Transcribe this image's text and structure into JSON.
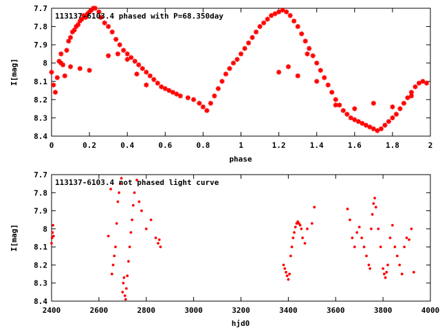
{
  "chart_data": [
    {
      "type": "scatter",
      "title": "113137-6103.4 phased with P=68.350day",
      "xlabel": "phase",
      "ylabel": "I[mag]",
      "xlim": [
        0,
        2
      ],
      "ylim": [
        7.7,
        8.4
      ],
      "y_inverted": true,
      "grid": false,
      "marker": "star",
      "color": "#ff0000",
      "x_ticks": [
        "0",
        "0.2",
        "0.4",
        "0.6",
        "0.8",
        "1",
        "1.2",
        "1.4",
        "1.6",
        "1.8",
        "2"
      ],
      "y_ticks": [
        "7.7",
        "7.8",
        "7.9",
        "8",
        "8.1",
        "8.2",
        "8.3",
        "8.4"
      ],
      "series": [
        {
          "x": [
            0.0,
            0.01,
            0.02,
            0.03,
            0.04,
            0.05,
            0.06,
            0.07,
            0.08,
            0.09,
            0.1,
            0.11,
            0.12,
            0.13,
            0.14,
            0.15,
            0.16,
            0.17,
            0.18,
            0.19,
            0.2,
            0.21,
            0.22,
            0.23,
            0.25,
            0.26,
            0.28,
            0.3,
            0.32,
            0.34,
            0.36,
            0.38,
            0.4,
            0.42,
            0.44,
            0.46,
            0.48,
            0.5,
            0.52,
            0.54,
            0.56,
            0.58,
            0.6,
            0.62,
            0.64,
            0.66,
            0.68,
            0.72,
            0.75,
            0.78,
            0.8,
            0.82,
            0.84,
            0.86,
            0.88,
            0.9,
            0.92,
            0.94,
            0.96,
            0.98,
            1.0,
            1.02,
            1.04,
            1.06,
            1.08,
            1.1,
            1.12,
            1.14,
            1.16,
            1.18,
            1.2,
            1.22,
            1.24,
            1.26,
            1.28,
            1.3,
            1.32,
            1.34,
            1.36,
            1.38,
            1.4,
            1.42,
            1.44,
            1.46,
            1.48,
            1.5,
            1.52,
            1.54,
            1.56,
            1.58,
            1.6,
            1.62,
            1.64,
            1.66,
            1.68,
            1.7,
            1.72,
            1.74,
            1.76,
            1.78,
            1.8,
            1.82,
            1.84,
            1.86,
            1.88,
            1.9,
            1.92,
            1.94,
            1.96,
            1.98,
            0.05,
            0.1,
            0.15,
            0.2,
            0.3,
            0.35,
            0.4,
            0.45,
            0.5,
            1.2,
            1.25,
            1.3,
            1.35,
            1.4,
            1.5,
            1.6,
            1.7,
            1.8,
            1.9
          ],
          "y": [
            8.05,
            8.12,
            8.16,
            8.08,
            7.99,
            7.95,
            8.01,
            8.07,
            7.93,
            7.88,
            7.86,
            7.83,
            7.82,
            7.8,
            7.79,
            7.77,
            7.76,
            7.74,
            7.75,
            7.73,
            7.72,
            7.71,
            7.7,
            7.7,
            7.72,
            7.75,
            7.78,
            7.8,
            7.83,
            7.87,
            7.9,
            7.93,
            7.95,
            7.97,
            7.99,
            8.01,
            8.03,
            8.05,
            8.07,
            8.09,
            8.11,
            8.13,
            8.14,
            8.15,
            8.16,
            8.17,
            8.18,
            8.19,
            8.2,
            8.22,
            8.24,
            8.26,
            8.22,
            8.18,
            8.14,
            8.1,
            8.06,
            8.03,
            8.0,
            7.98,
            7.95,
            7.92,
            7.89,
            7.86,
            7.83,
            7.8,
            7.78,
            7.76,
            7.74,
            7.73,
            7.72,
            7.71,
            7.72,
            7.74,
            7.77,
            7.8,
            7.84,
            7.88,
            7.92,
            7.96,
            8.0,
            8.04,
            8.08,
            8.12,
            8.16,
            8.2,
            8.23,
            8.26,
            8.28,
            8.3,
            8.31,
            8.32,
            8.33,
            8.34,
            8.35,
            8.36,
            8.37,
            8.36,
            8.34,
            8.32,
            8.3,
            8.28,
            8.25,
            8.22,
            8.19,
            8.16,
            8.13,
            8.11,
            8.1,
            8.11,
            8.0,
            8.02,
            8.03,
            8.04,
            7.96,
            7.95,
            7.98,
            8.06,
            8.12,
            8.05,
            8.02,
            8.07,
            7.95,
            8.1,
            8.23,
            8.25,
            8.22,
            8.24,
            8.18
          ]
        }
      ]
    },
    {
      "type": "scatter",
      "title": "113137-6103.4 not phased light curve",
      "xlabel": "hjd0",
      "ylabel": "I[mag]",
      "xlim": [
        2400,
        4000
      ],
      "ylim": [
        7.7,
        8.4
      ],
      "y_inverted": true,
      "grid": false,
      "marker": "dot",
      "color": "#ff0000",
      "x_ticks": [
        "2400",
        "2600",
        "2800",
        "3000",
        "3200",
        "3400",
        "3600",
        "3800",
        "4000"
      ],
      "y_ticks": [
        "7.7",
        "7.8",
        "7.9",
        "8",
        "8.1",
        "8.2",
        "8.3",
        "8.4"
      ],
      "series": [
        {
          "x": [
            2400,
            2402,
            2404,
            2406,
            2408,
            2640,
            2650,
            2655,
            2660,
            2665,
            2670,
            2675,
            2680,
            2685,
            2690,
            2695,
            2700,
            2703,
            2706,
            2710,
            2713,
            2716,
            2720,
            2725,
            2730,
            2735,
            2740,
            2745,
            2750,
            2760,
            2770,
            2780,
            2800,
            2820,
            2840,
            2850,
            2855,
            2860,
            3380,
            3385,
            3390,
            3395,
            3400,
            3405,
            3410,
            3415,
            3420,
            3425,
            3430,
            3435,
            3440,
            3445,
            3450,
            3455,
            3460,
            3470,
            3480,
            3500,
            3510,
            3650,
            3660,
            3670,
            3680,
            3690,
            3700,
            3710,
            3720,
            3730,
            3740,
            3745,
            3750,
            3755,
            3760,
            3765,
            3770,
            3780,
            3790,
            3800,
            3805,
            3810,
            3815,
            3820,
            3830,
            3840,
            3850,
            3860,
            3870,
            3880,
            3890,
            3900,
            3910,
            3920,
            3930
          ],
          "y": [
            8.08,
            8.05,
            8.02,
            7.98,
            8.04,
            8.04,
            7.78,
            8.25,
            8.2,
            8.15,
            8.1,
            7.97,
            7.85,
            7.8,
            7.75,
            7.72,
            8.35,
            8.3,
            8.27,
            8.37,
            8.39,
            8.33,
            8.26,
            8.18,
            8.1,
            8.02,
            7.95,
            7.87,
            7.8,
            7.73,
            7.85,
            7.9,
            8.0,
            7.95,
            8.05,
            8.08,
            8.06,
            8.1,
            8.2,
            8.22,
            8.24,
            8.26,
            8.28,
            8.25,
            8.15,
            8.1,
            8.05,
            8.02,
            7.99,
            7.97,
            7.96,
            7.97,
            7.98,
            8.0,
            8.05,
            8.08,
            8.0,
            7.97,
            7.88,
            7.89,
            7.95,
            8.05,
            8.1,
            8.02,
            7.99,
            8.05,
            8.1,
            8.15,
            8.2,
            8.22,
            8.0,
            7.92,
            7.86,
            7.83,
            7.88,
            8.0,
            8.1,
            8.22,
            8.25,
            8.27,
            8.24,
            8.2,
            8.05,
            7.98,
            8.1,
            8.15,
            8.2,
            8.25,
            8.1,
            8.05,
            8.06,
            8.0,
            8.24
          ]
        }
      ]
    }
  ]
}
